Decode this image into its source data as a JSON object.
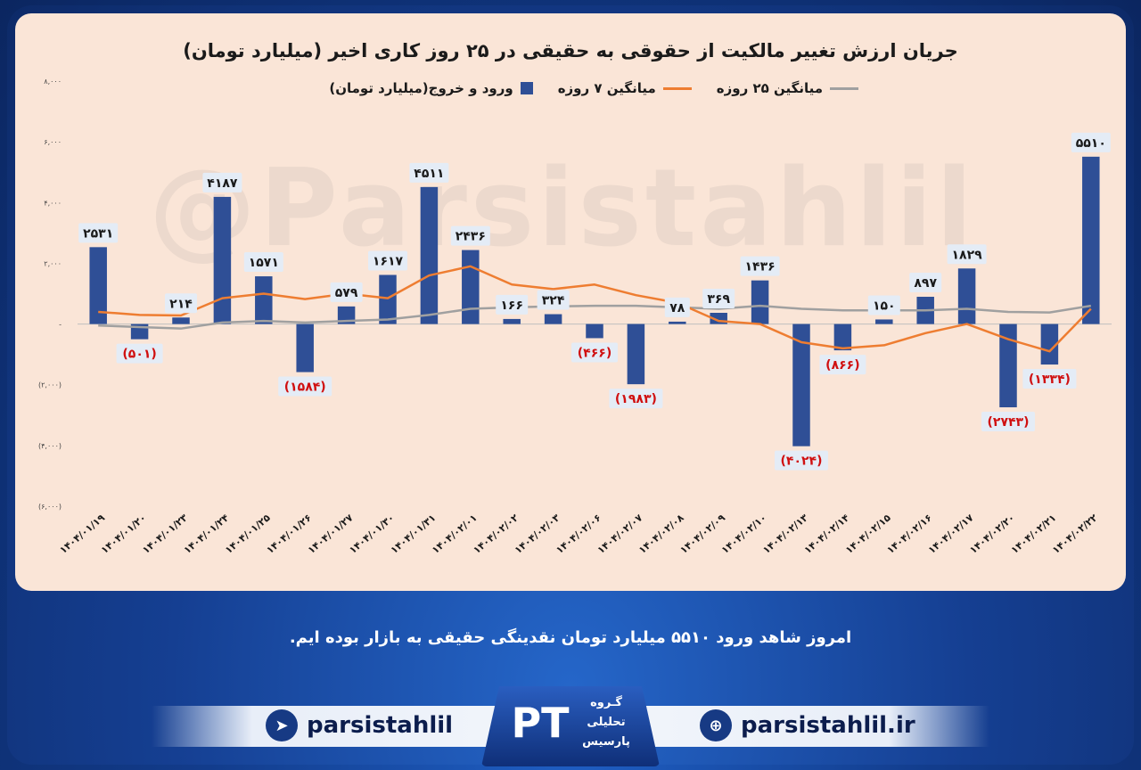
{
  "chart_data": {
    "type": "bar",
    "title": "جریان ارزش تغییر مالکیت از حقوقی به حقیقی در ۲۵ روز کاری اخیر (میلیارد تومان)",
    "categories": [
      "۱۴۰۴/۰۱/۱۹",
      "۱۴۰۴/۰۱/۲۰",
      "۱۴۰۴/۰۱/۲۳",
      "۱۴۰۴/۰۱/۲۴",
      "۱۴۰۴/۰۱/۲۵",
      "۱۴۰۴/۰۱/۲۶",
      "۱۴۰۴/۰۱/۲۷",
      "۱۴۰۴/۰۱/۳۰",
      "۱۴۰۴/۰۱/۳۱",
      "۱۴۰۴/۰۲/۰۱",
      "۱۴۰۴/۰۲/۰۲",
      "۱۴۰۴/۰۲/۰۳",
      "۱۴۰۴/۰۲/۰۶",
      "۱۴۰۴/۰۲/۰۷",
      "۱۴۰۴/۰۲/۰۸",
      "۱۴۰۴/۰۲/۰۹",
      "۱۴۰۴/۰۲/۱۰",
      "۱۴۰۴/۰۲/۱۳",
      "۱۴۰۴/۰۲/۱۴",
      "۱۴۰۴/۰۲/۱۵",
      "۱۴۰۴/۰۲/۱۶",
      "۱۴۰۴/۰۲/۱۷",
      "۱۴۰۴/۰۲/۲۰",
      "۱۴۰۴/۰۲/۲۱",
      "۱۴۰۴/۰۲/۲۲"
    ],
    "series": [
      {
        "name": "ورود و خروج(میلیارد تومان)",
        "kind": "bar",
        "color": "#2f4f96",
        "values": [
          2531,
          -501,
          214,
          4187,
          1571,
          -1584,
          579,
          1617,
          4511,
          2436,
          166,
          324,
          -466,
          -1983,
          78,
          369,
          1436,
          -4024,
          -866,
          150,
          897,
          1829,
          -2743,
          -1334,
          5510
        ],
        "labels": [
          "۲۵۳۱",
          "(۵۰۱)",
          "۲۱۴",
          "۴۱۸۷",
          "۱۵۷۱",
          "(۱۵۸۴)",
          "۵۷۹",
          "۱۶۱۷",
          "۴۵۱۱",
          "۲۴۳۶",
          "۱۶۶",
          "۳۲۴",
          "(۴۶۶)",
          "(۱۹۸۳)",
          "۷۸",
          "۳۶۹",
          "۱۴۳۶",
          "(۴۰۲۴)",
          "(۸۶۶)",
          "۱۵۰",
          "۸۹۷",
          "۱۸۲۹",
          "(۲۷۴۳)",
          "(۱۳۳۴)",
          "۵۵۱۰"
        ]
      },
      {
        "name": "میانگین ۷ روزه",
        "kind": "line",
        "color": "#ee7d31",
        "values": [
          400,
          300,
          280,
          850,
          1000,
          820,
          1000,
          850,
          1600,
          1900,
          1300,
          1150,
          1300,
          950,
          700,
          100,
          0,
          -600,
          -800,
          -700,
          -300,
          0,
          -500,
          -900,
          500
        ]
      },
      {
        "name": "میانگین ۲۵ روزه",
        "kind": "line",
        "color": "#a0a0a0",
        "values": [
          -50,
          -100,
          -150,
          50,
          100,
          50,
          100,
          150,
          300,
          500,
          550,
          580,
          600,
          600,
          550,
          500,
          600,
          500,
          450,
          450,
          450,
          500,
          400,
          380,
          600
        ]
      }
    ],
    "ylim": [
      -6000,
      8000
    ],
    "yticks": [
      8000,
      6000,
      4000,
      2000,
      0,
      -2000,
      -4000,
      -6000
    ],
    "ytick_labels": [
      "۸,۰۰۰",
      "۶,۰۰۰",
      "۴,۰۰۰",
      "۲,۰۰۰",
      "-",
      "(۲,۰۰۰)",
      "(۴,۰۰۰)",
      "(۶,۰۰۰)"
    ],
    "legend": "top-center",
    "grid": false
  },
  "watermark": "@Parsistahlil",
  "caption": "امروز شاهد ورود ۵۵۱۰ میلیارد تومان نقدینگی حقیقی به بازار بوده ایم.",
  "footer": {
    "telegram": "parsistahlil",
    "website": "parsistahlil.ir",
    "logo_letters": "PT",
    "logo_text": [
      "گـروه",
      "تحلیلی",
      "پارسیس"
    ]
  },
  "colors": {
    "positive_label": "#1a1a1a",
    "negative_label": "#d01010",
    "label_bg": "#e4ecf6"
  }
}
